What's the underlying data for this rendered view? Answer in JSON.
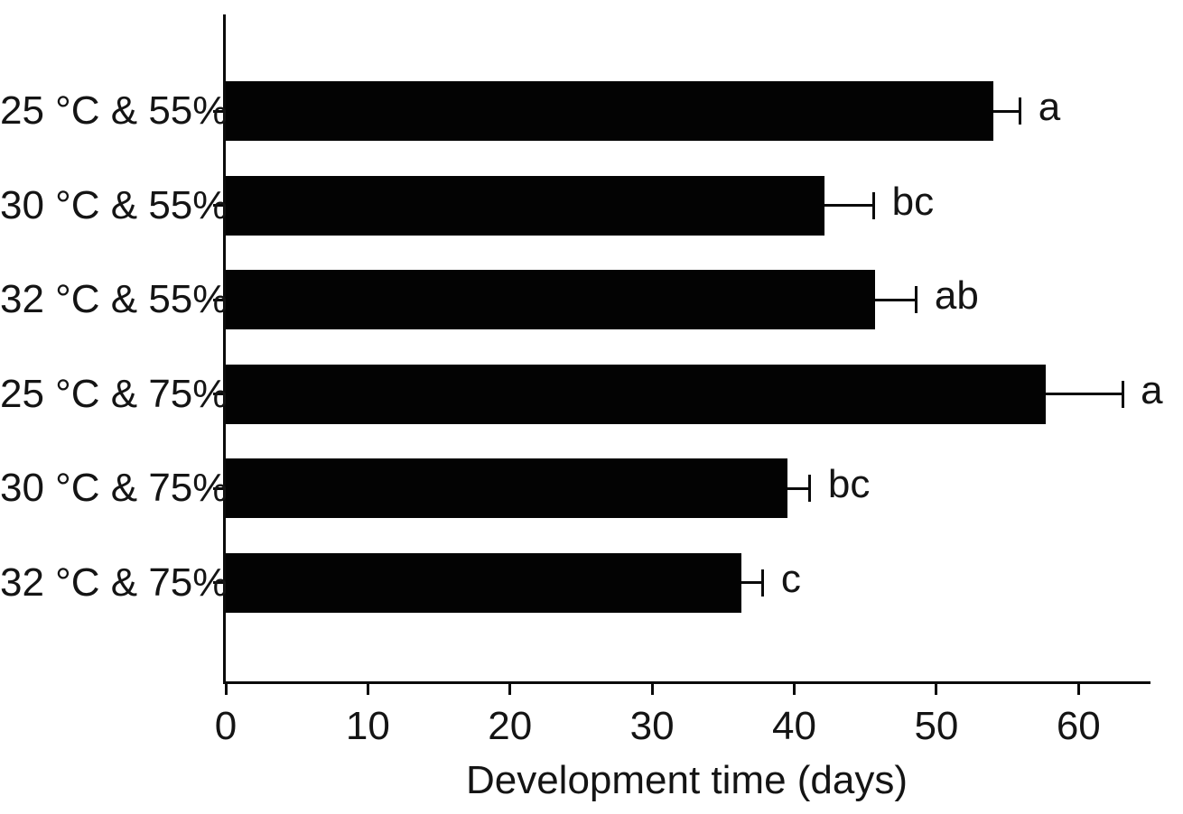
{
  "figure": {
    "background_color": "#ffffff",
    "ink_color": "#0a0a0a",
    "text_color": "#141414"
  },
  "chart_data": {
    "type": "bar",
    "orientation": "horizontal",
    "title": "",
    "xlabel": "Development time (days)",
    "ylabel": "",
    "categories": [
      "25 °C & 55%",
      "30 °C & 55%",
      "32 °C & 55%",
      "25 °C & 75%",
      "30 °C & 75%",
      "32 °C & 75%"
    ],
    "series": [
      {
        "name": "Development time",
        "values": [
          54.0,
          42.1,
          45.7,
          57.7,
          39.5,
          36.3
        ],
        "errors_plus": [
          1.9,
          3.5,
          2.9,
          5.4,
          1.6,
          1.5
        ],
        "significance_letters": [
          "a",
          "bc",
          "ab",
          "a",
          "bc",
          "c"
        ]
      }
    ],
    "xlim": [
      0,
      65
    ],
    "xticks": [
      0,
      10,
      20,
      30,
      40,
      50,
      60
    ],
    "xtick_labels": [
      "0",
      "10",
      "20",
      "30",
      "40",
      "50",
      "60"
    ],
    "bar_color": "#030303",
    "grid": false,
    "legend_position": "none"
  }
}
